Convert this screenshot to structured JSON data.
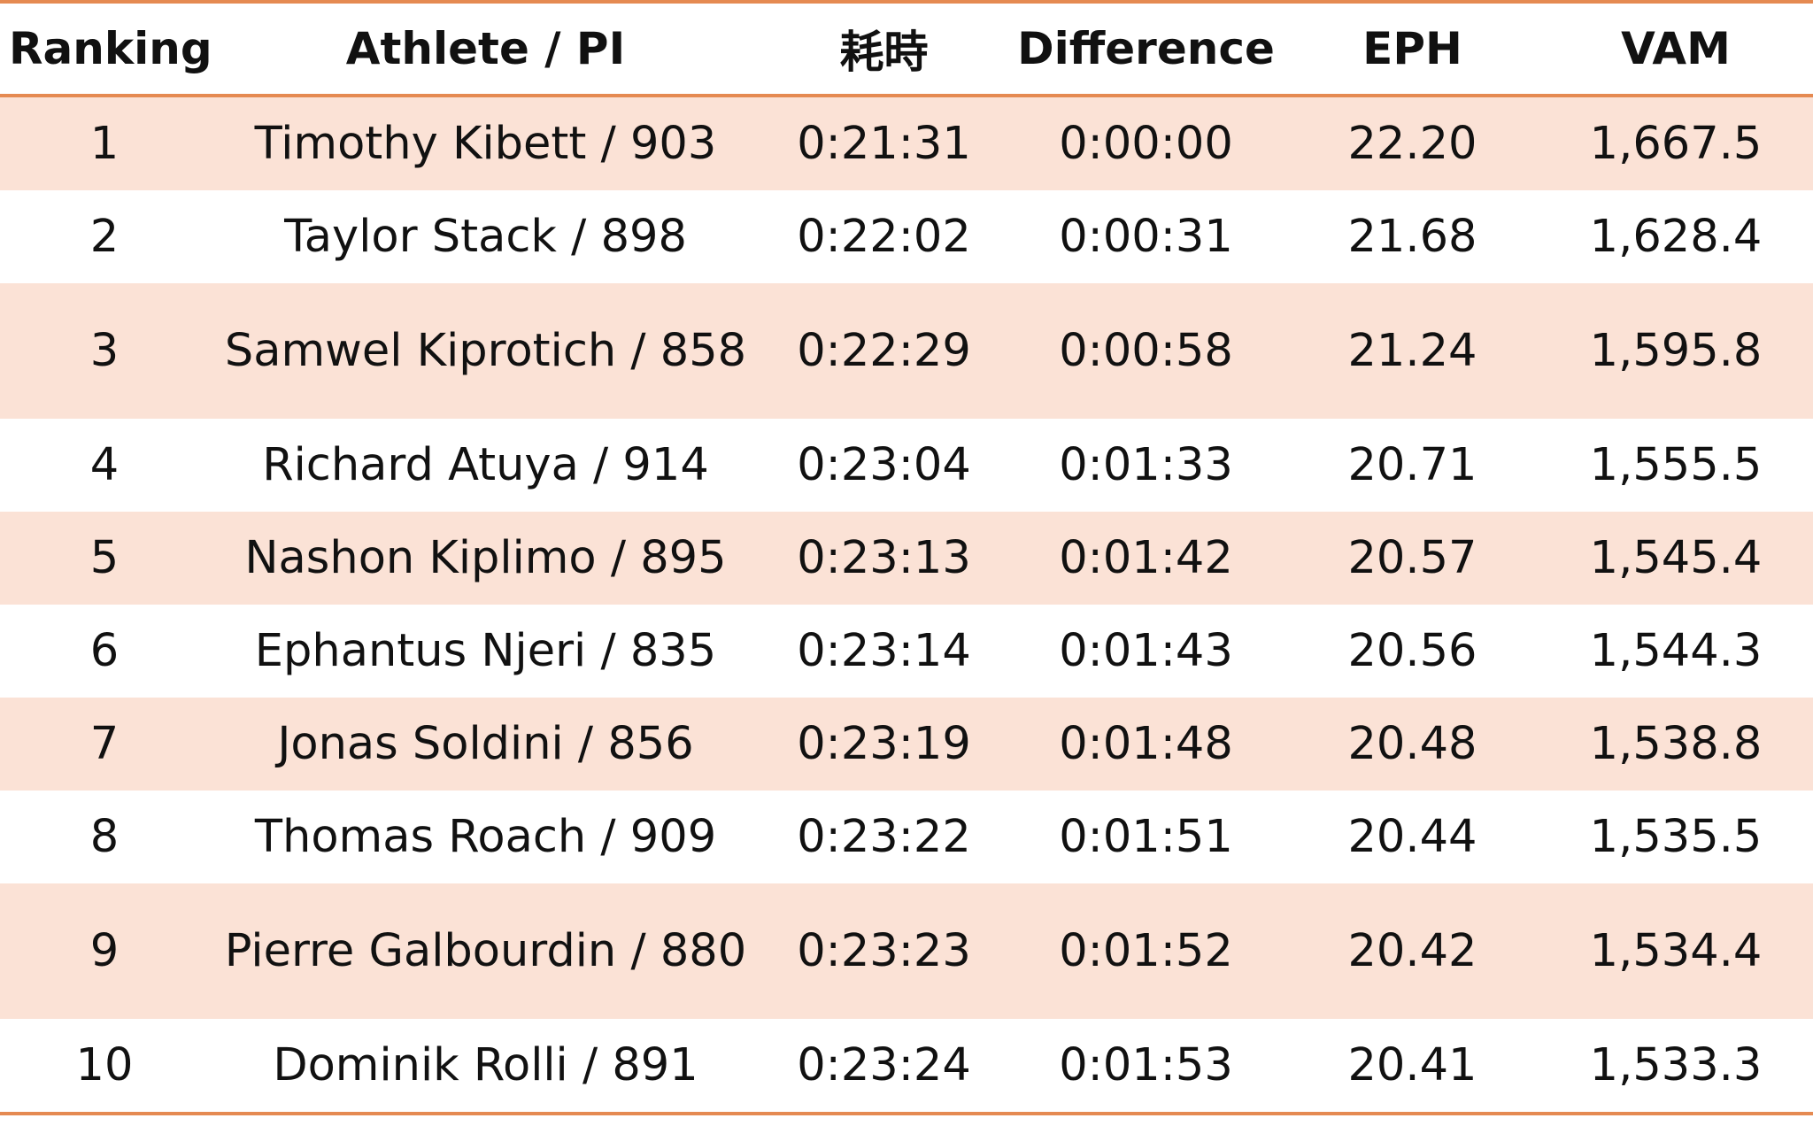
{
  "table": {
    "headers": [
      "Ranking",
      "Athlete / PI",
      "耗時",
      "Difference",
      "EPH",
      "VAM"
    ],
    "rows": [
      {
        "ranking": "1",
        "athlete": "Timothy Kibett / 903",
        "time": "0:21:31",
        "difference": "0:00:00",
        "eph": "22.20",
        "vam": "1,667.5"
      },
      {
        "ranking": "2",
        "athlete": "Taylor Stack / 898",
        "time": "0:22:02",
        "difference": "0:00:31",
        "eph": "21.68",
        "vam": "1,628.4"
      },
      {
        "ranking": "3",
        "athlete": "Samwel Kiprotich / 858",
        "time": "0:22:29",
        "difference": "0:00:58",
        "eph": "21.24",
        "vam": "1,595.8"
      },
      {
        "ranking": "4",
        "athlete": "Richard Atuya / 914",
        "time": "0:23:04",
        "difference": "0:01:33",
        "eph": "20.71",
        "vam": "1,555.5"
      },
      {
        "ranking": "5",
        "athlete": "Nashon Kiplimo / 895",
        "time": "0:23:13",
        "difference": "0:01:42",
        "eph": "20.57",
        "vam": "1,545.4"
      },
      {
        "ranking": "6",
        "athlete": "Ephantus Njeri / 835",
        "time": "0:23:14",
        "difference": "0:01:43",
        "eph": "20.56",
        "vam": "1,544.3"
      },
      {
        "ranking": "7",
        "athlete": "Jonas Soldini / 856",
        "time": "0:23:19",
        "difference": "0:01:48",
        "eph": "20.48",
        "vam": "1,538.8"
      },
      {
        "ranking": "8",
        "athlete": "Thomas Roach / 909",
        "time": "0:23:22",
        "difference": "0:01:51",
        "eph": "20.44",
        "vam": "1,535.5"
      },
      {
        "ranking": "9",
        "athlete": "Pierre Galbourdin / 880",
        "time": "0:23:23",
        "difference": "0:01:52",
        "eph": "20.42",
        "vam": "1,534.4"
      },
      {
        "ranking": "10",
        "athlete": "Dominik Rolli / 891",
        "time": "0:23:24",
        "difference": "0:01:53",
        "eph": "20.41",
        "vam": "1,533.3"
      }
    ]
  },
  "colors": {
    "accent_border": "#e58a52",
    "shaded_row": "#fbe2d6",
    "plain_row": "#ffffff",
    "text": "#111111"
  }
}
